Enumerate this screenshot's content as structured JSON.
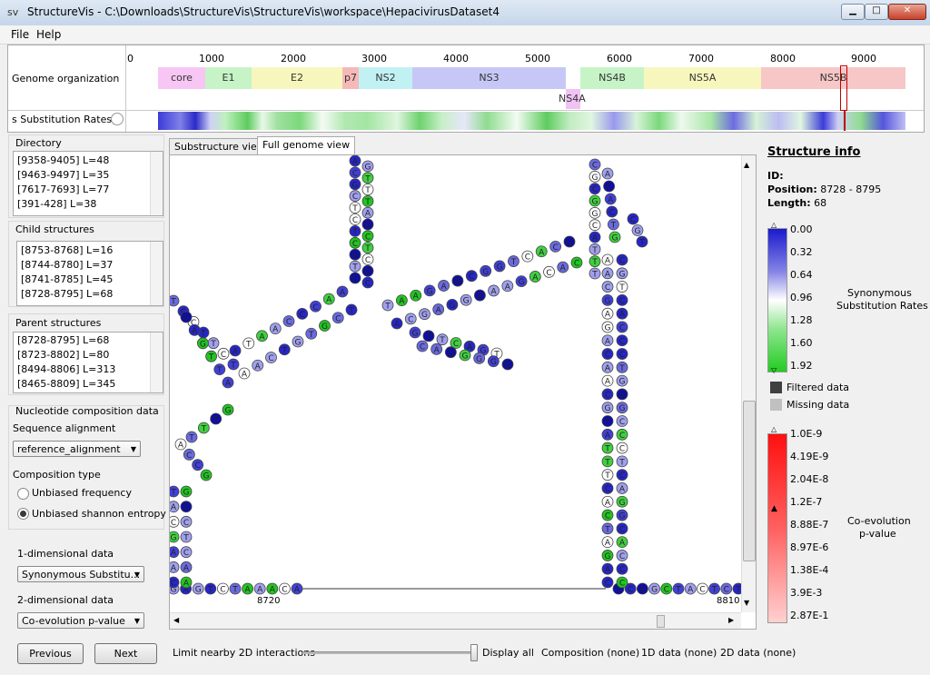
{
  "window": {
    "icon_text": "sv",
    "title": "StructureVis - C:\\Downloads\\StructureVis\\StructureVis\\workspace\\HepacivirusDataset4",
    "minimize": "▁",
    "maximize": "□",
    "close": "✕"
  },
  "menu": [
    "File",
    "Help"
  ],
  "genome": {
    "label": "Genome organization",
    "subst_label": "s Substitution Rates)",
    "ticks": [
      "0",
      "1000",
      "2000",
      "3000",
      "4000",
      "5000",
      "6000",
      "7000",
      "8000",
      "9000"
    ],
    "genes": [
      {
        "name": "core",
        "color": "#f7c6f4"
      },
      {
        "name": "E1",
        "color": "#c6f4c6"
      },
      {
        "name": "E2",
        "color": "#f7f7bd"
      },
      {
        "name": "p7",
        "color": "#f7b8b8"
      },
      {
        "name": "NS2",
        "color": "#c2f1f4"
      },
      {
        "name": "NS3",
        "color": "#c7c7f7"
      },
      {
        "name": "NS4A",
        "color": "#f1c2f4"
      },
      {
        "name": "NS4B",
        "color": "#c6f4c6"
      },
      {
        "name": "NS5A",
        "color": "#f7f7bd"
      },
      {
        "name": "NS5B",
        "color": "#f7c6c6"
      }
    ]
  },
  "left": {
    "directory_title": "Directory",
    "directory": [
      "[9358-9405] L=48",
      "[9463-9497] L=35",
      "[7617-7693] L=77",
      "[391-428] L=38"
    ],
    "child_title": "Child structures",
    "child": [
      "[8753-8768] L=16",
      "[8744-8780] L=37",
      "[8741-8785] L=45",
      "[8728-8795] L=68"
    ],
    "parent_title": "Parent structures",
    "parent": [
      "[8728-8795] L=68",
      "[8723-8802] L=80",
      "[8494-8806] L=313",
      "[8465-8809] L=345"
    ],
    "nucleotide_title": "Nucleotide composition data",
    "seq_align_label": "Sequence alignment",
    "seq_align_value": "reference_alignment",
    "comp_type_label": "Composition type",
    "comp_opt1": "Unbiased frequency",
    "comp_opt2": "Unbiased shannon entropy",
    "oned_label": "1-dimensional data",
    "oned_value": "Synonymous Substitu...",
    "twod_label": "2-dimensional data",
    "twod_value": "Co-evolution p-value"
  },
  "tabs": [
    "Substructure view",
    "Full genome view"
  ],
  "canvas": {
    "pos_left": "8720",
    "pos_right": "8810"
  },
  "info": {
    "title": "Structure info",
    "id": "ID:",
    "position": "Position: 8728 - 8795",
    "position_key": "Position:",
    "position_val": "8728 - 8795",
    "length_key": "Length:",
    "length_val": "68",
    "subst_legend": [
      "0.00",
      "0.32",
      "0.64",
      "0.96",
      "1.28",
      "1.60",
      "1.92"
    ],
    "subst_title_1": "Synonymous",
    "subst_title_2": "Substitution Rates",
    "filtered": "Filtered data",
    "missing": "Missing data",
    "coevo_legend": [
      "1.0E-9",
      "4.19E-9",
      "2.04E-8",
      "1.2E-7",
      "8.88E-7",
      "8.97E-6",
      "1.38E-4",
      "3.9E-3",
      "2.87E-1"
    ],
    "coevo_title_1": "Co-evolution",
    "coevo_title_2": "p-value",
    "colors": {
      "synonymous_low": "#1a1acc",
      "synonymous_mid": "#ffffff",
      "synonymous_high": "#22cc22",
      "coevo_high": "#ff2020",
      "coevo_low": "#ffd0d0"
    }
  },
  "bottom": {
    "previous": "Previous",
    "next": "Next",
    "limit_label": "Limit nearby 2D interactions",
    "display_all": "Display all",
    "composition": "Composition (none)",
    "oned": "1D data (none)",
    "twod": "2D data (none)"
  }
}
